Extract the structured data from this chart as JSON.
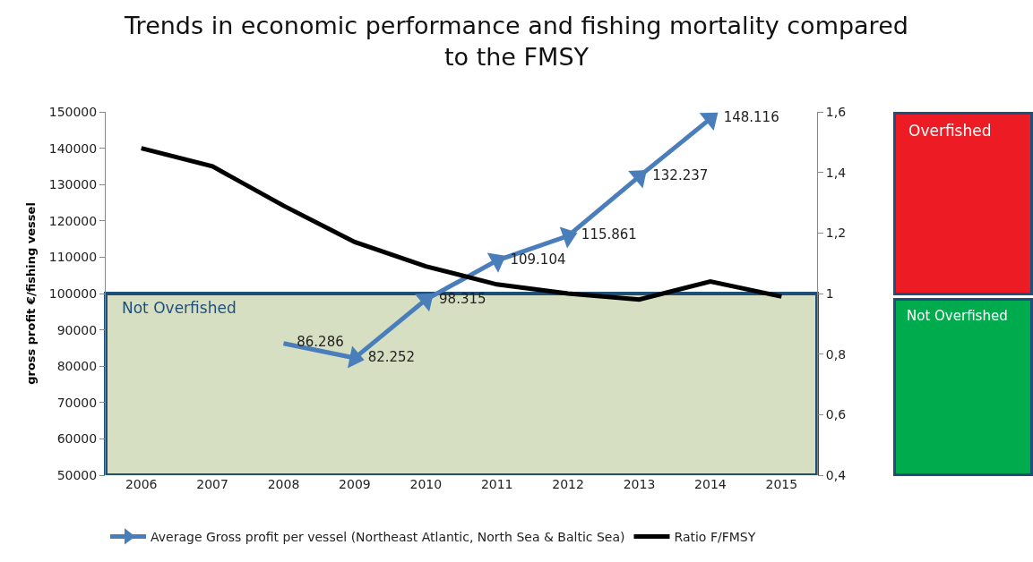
{
  "chart_data": {
    "type": "line",
    "title": "Trends in economic performance and fishing mortality compared\nto the FMSY",
    "ylabel": "gross profit €/fishing vessel",
    "categories": [
      "2006",
      "2007",
      "2008",
      "2009",
      "2010",
      "2011",
      "2012",
      "2013",
      "2014",
      "2015"
    ],
    "series": [
      {
        "name": "Average Gross profit per vessel (Northeast Atlantic, North Sea & Baltic Sea)",
        "color": "#4a7ebb",
        "marker": "triangle",
        "values": [
          null,
          null,
          86286,
          82252,
          98315,
          109104,
          115861,
          132237,
          148116,
          null
        ],
        "value_labels": [
          null,
          null,
          "86.286",
          "82.252",
          "98.315",
          "109.104",
          "115.861",
          "132.237",
          "148.116",
          null
        ]
      },
      {
        "name": "Ratio F/FMSY",
        "color": "#000000",
        "axis": "y2",
        "values": [
          1.48,
          1.42,
          1.29,
          1.17,
          1.09,
          1.03,
          1.0,
          0.98,
          1.04,
          0.99
        ]
      }
    ],
    "ylim": [
      50000,
      150000
    ],
    "yticks": [
      50000,
      60000,
      70000,
      80000,
      90000,
      100000,
      110000,
      120000,
      130000,
      140000,
      150000
    ],
    "y2lim": [
      0.4,
      1.6
    ],
    "y2ticks": [
      {
        "value": 0.4,
        "label": "0,4"
      },
      {
        "value": 0.6,
        "label": "0,6"
      },
      {
        "value": 0.8,
        "label": "0,8"
      },
      1,
      {
        "value": 1.2,
        "label": "1,2"
      },
      {
        "value": 1.4,
        "label": "1,4"
      },
      {
        "value": 1.6,
        "label": "1,6"
      }
    ],
    "bands": [
      {
        "axis": "y2",
        "from": 0.4,
        "to": 1,
        "label": "Not Overfished",
        "color": "#d7dfc2"
      }
    ],
    "annotations": [
      "Overfished",
      "Not Overfished"
    ],
    "grid": false,
    "legend": "bottom",
    "line_style": "solid"
  }
}
